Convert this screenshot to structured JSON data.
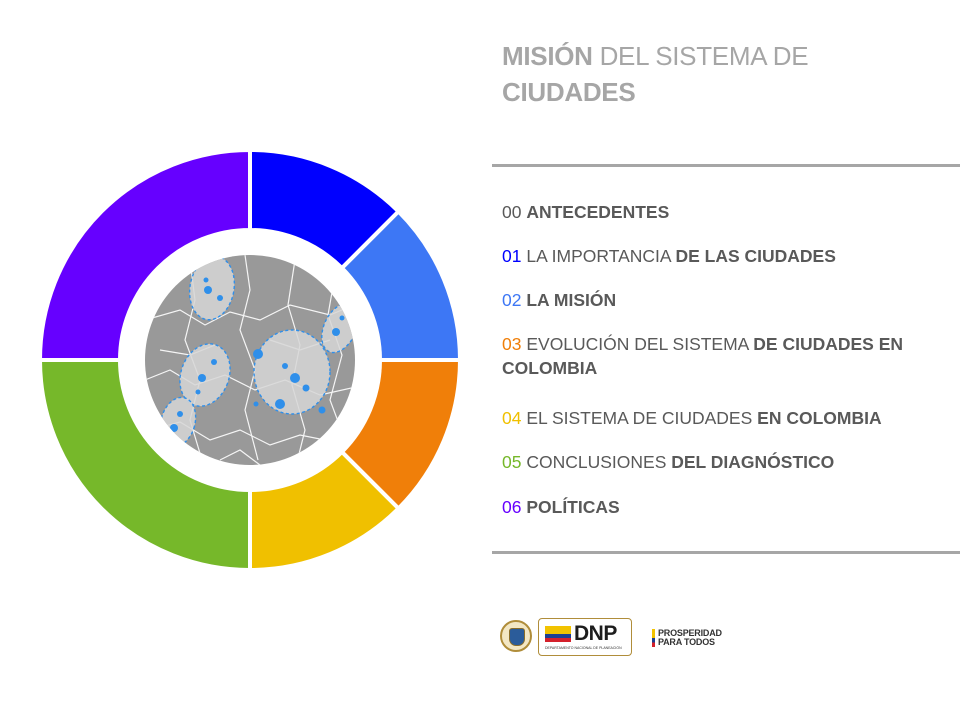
{
  "title": {
    "strong1": "MISIÓN",
    "light": " DEL SISTEMA DE ",
    "strong2": "CIUDADES"
  },
  "menu": [
    {
      "num": "00",
      "light": "",
      "bold": "ANTECEDENTES",
      "num_color": "#595959"
    },
    {
      "num": "01",
      "light": "LA IMPORTANCIA ",
      "bold": "DE LAS CIUDADES",
      "num_color": "#0000ff"
    },
    {
      "num": "02",
      "light": "",
      "bold": "LA MISIÓN",
      "num_color": "#3d77f5"
    },
    {
      "num": "03",
      "light": "EVOLUCIÓN DEL SISTEMA ",
      "bold": "DE CIUDADES EN COLOMBIA",
      "num_color": "#f07f09"
    },
    {
      "num": "04",
      "light": "EL SISTEMA DE CIUDADES ",
      "bold": "EN COLOMBIA",
      "num_color": "#f0c000"
    },
    {
      "num": "05",
      "light": "CONCLUSIONES ",
      "bold": "DEL DIAGNÓSTICO",
      "num_color": "#76b82a"
    },
    {
      "num": "06",
      "light": "",
      "bold": "POLÍTICAS",
      "num_color": "#6600ff"
    }
  ],
  "donut": {
    "segments": [
      {
        "color": "#0000ff",
        "fraction": 0.125
      },
      {
        "color": "#3d77f5",
        "fraction": 0.125
      },
      {
        "color": "#f07f09",
        "fraction": 0.125
      },
      {
        "color": "#f0c000",
        "fraction": 0.125
      },
      {
        "color": "#76b82a",
        "fraction": 0.25
      },
      {
        "color": "#6600ff",
        "fraction": 0.25
      }
    ],
    "map_color": "#999999",
    "city_color": "#2f8fea"
  },
  "logos": {
    "dnp_word": "DNP",
    "dnp_sub": "DEPARTAMENTO NACIONAL DE PLANEACIÓN",
    "prosperidad_1": "PROSPERIDAD",
    "prosperidad_2": "PARA TODOS"
  }
}
